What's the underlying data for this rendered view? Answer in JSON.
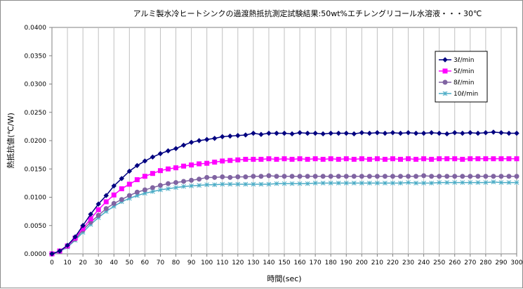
{
  "chart_data": {
    "type": "line",
    "title": "アルミ製水冷ヒートシンクの過渡熱抵抗測定試験結果:50wt%エチレングリコール水溶液・・・30℃",
    "xlabel": "時間(sec)",
    "ylabel": "熱抵抗値(℃/W)",
    "xlim": [
      0,
      300
    ],
    "ylim": [
      0,
      0.04
    ],
    "x_ticks": [
      0,
      10,
      20,
      30,
      40,
      50,
      60,
      70,
      80,
      90,
      100,
      110,
      120,
      130,
      140,
      150,
      160,
      170,
      180,
      190,
      200,
      210,
      220,
      230,
      240,
      250,
      260,
      270,
      280,
      290,
      300
    ],
    "y_ticks": [
      0.0,
      0.005,
      0.01,
      0.015,
      0.02,
      0.025,
      0.03,
      0.035,
      0.04
    ],
    "y_tick_labels": [
      "0.0000",
      "0.0050",
      "0.0100",
      "0.0150",
      "0.0200",
      "0.0250",
      "0.0300",
      "0.0350",
      "0.0400"
    ],
    "grid": "vertical",
    "legend_position": "right",
    "x": [
      0,
      5,
      10,
      15,
      20,
      25,
      30,
      35,
      40,
      45,
      50,
      55,
      60,
      65,
      70,
      75,
      80,
      85,
      90,
      95,
      100,
      105,
      110,
      115,
      120,
      125,
      130,
      135,
      140,
      145,
      150,
      155,
      160,
      165,
      170,
      175,
      180,
      185,
      190,
      195,
      200,
      205,
      210,
      215,
      220,
      225,
      230,
      235,
      240,
      245,
      250,
      255,
      260,
      265,
      270,
      275,
      280,
      285,
      290,
      295,
      300
    ],
    "series": [
      {
        "name": "3ℓ/min",
        "color": "#000080",
        "marker": "diamond",
        "values": [
          0.0,
          0.0005,
          0.0015,
          0.003,
          0.005,
          0.007,
          0.0088,
          0.0103,
          0.012,
          0.0133,
          0.0146,
          0.0156,
          0.0164,
          0.0171,
          0.0177,
          0.0182,
          0.0186,
          0.0192,
          0.0197,
          0.02,
          0.0202,
          0.0204,
          0.0207,
          0.0208,
          0.0209,
          0.021,
          0.0213,
          0.0211,
          0.0213,
          0.0213,
          0.0213,
          0.0212,
          0.0214,
          0.0213,
          0.0213,
          0.0212,
          0.0213,
          0.0213,
          0.0213,
          0.0212,
          0.0214,
          0.0213,
          0.0214,
          0.0213,
          0.0214,
          0.0213,
          0.0214,
          0.0213,
          0.0213,
          0.0214,
          0.0213,
          0.0212,
          0.0214,
          0.0213,
          0.0214,
          0.0213,
          0.0214,
          0.0215,
          0.0214,
          0.0213,
          0.0213
        ]
      },
      {
        "name": "5ℓ/min",
        "color": "#FF00FF",
        "marker": "square",
        "values": [
          0.0,
          0.0005,
          0.0014,
          0.0028,
          0.0045,
          0.0062,
          0.0078,
          0.0092,
          0.0104,
          0.0115,
          0.0123,
          0.0131,
          0.0137,
          0.0142,
          0.0147,
          0.015,
          0.0152,
          0.0155,
          0.0157,
          0.0159,
          0.016,
          0.0162,
          0.0164,
          0.0165,
          0.0166,
          0.0167,
          0.0167,
          0.0167,
          0.0168,
          0.0167,
          0.0168,
          0.0167,
          0.0168,
          0.0167,
          0.0168,
          0.0167,
          0.0168,
          0.0167,
          0.0168,
          0.0167,
          0.0168,
          0.0167,
          0.0168,
          0.0167,
          0.0168,
          0.0167,
          0.0168,
          0.0167,
          0.0168,
          0.0167,
          0.0168,
          0.0168,
          0.0168,
          0.0167,
          0.0168,
          0.0168,
          0.0168,
          0.0168,
          0.0168,
          0.0168,
          0.0168
        ]
      },
      {
        "name": "8ℓ/min",
        "color": "#8064A2",
        "marker": "circle",
        "values": [
          0.0,
          0.0005,
          0.0013,
          0.0026,
          0.0042,
          0.0056,
          0.0068,
          0.008,
          0.0089,
          0.0096,
          0.0103,
          0.0109,
          0.0113,
          0.0117,
          0.0121,
          0.0124,
          0.0126,
          0.0128,
          0.013,
          0.0132,
          0.0135,
          0.0135,
          0.0136,
          0.0135,
          0.0136,
          0.0136,
          0.0137,
          0.0137,
          0.0138,
          0.0137,
          0.0137,
          0.0137,
          0.0137,
          0.0137,
          0.0137,
          0.0137,
          0.0137,
          0.0137,
          0.0137,
          0.0137,
          0.0137,
          0.0137,
          0.0137,
          0.0137,
          0.0137,
          0.0137,
          0.0137,
          0.0137,
          0.0138,
          0.0137,
          0.0137,
          0.0137,
          0.0137,
          0.0137,
          0.0137,
          0.0137,
          0.0137,
          0.0137,
          0.0137,
          0.0137,
          0.0137
        ]
      },
      {
        "name": "10ℓ/min",
        "color": "#4BACC6",
        "marker": "asterisk",
        "values": [
          0.0,
          0.0004,
          0.0012,
          0.0024,
          0.0038,
          0.0052,
          0.0064,
          0.0075,
          0.0084,
          0.0092,
          0.0098,
          0.0103,
          0.0107,
          0.011,
          0.0113,
          0.0115,
          0.0117,
          0.0119,
          0.012,
          0.0121,
          0.0122,
          0.0122,
          0.0123,
          0.0123,
          0.0123,
          0.0123,
          0.0123,
          0.0123,
          0.0123,
          0.0124,
          0.0124,
          0.0124,
          0.0124,
          0.0124,
          0.0125,
          0.0125,
          0.0125,
          0.0125,
          0.0125,
          0.0125,
          0.0125,
          0.0125,
          0.0125,
          0.0125,
          0.0125,
          0.0125,
          0.0126,
          0.0125,
          0.0125,
          0.0125,
          0.0126,
          0.0126,
          0.0126,
          0.0126,
          0.0126,
          0.0126,
          0.0126,
          0.0127,
          0.0126,
          0.0126,
          0.0126
        ]
      }
    ]
  }
}
